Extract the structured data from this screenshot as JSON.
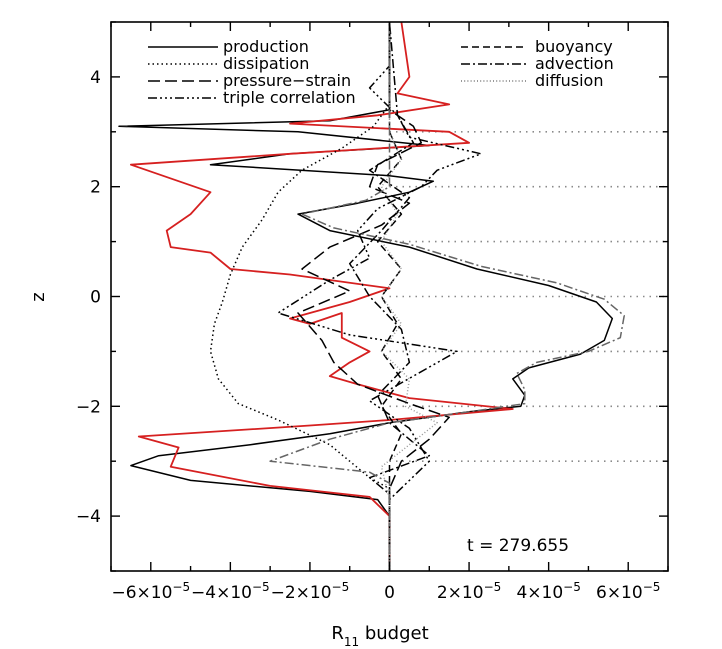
{
  "chart_data": {
    "type": "line",
    "xlabel": "R",
    "xlabel_sub": "11",
    "xlabel_suffix": " budget",
    "ylabel": "z",
    "xlim": [
      -7e-05,
      7e-05
    ],
    "ylim": [
      -5,
      5
    ],
    "annotation": "t = 279.655",
    "x_tick_labels": [
      {
        "value": -6e-05,
        "mant": "−6×10",
        "exp": "−5"
      },
      {
        "value": -4e-05,
        "mant": "−4×10",
        "exp": "−5"
      },
      {
        "value": -2e-05,
        "mant": "−2×10",
        "exp": "−5"
      },
      {
        "value": 0,
        "mant": "0",
        "exp": ""
      },
      {
        "value": 2e-05,
        "mant": "2×10",
        "exp": "−5"
      },
      {
        "value": 4e-05,
        "mant": "4×10",
        "exp": "−5"
      },
      {
        "value": 6e-05,
        "mant": "6×10",
        "exp": "−5"
      }
    ],
    "y_ticks": [
      -4,
      -2,
      0,
      2,
      4
    ],
    "y_tick_labels": [
      "−4",
      "−2",
      "0",
      "2",
      "4"
    ],
    "reference_lines_z": [
      -3,
      -2,
      -1,
      0,
      1,
      2,
      3
    ],
    "legend": {
      "left": [
        {
          "label": "production",
          "dash": "solid"
        },
        {
          "label": "dissipation",
          "dash": "dotted"
        },
        {
          "label": "pressure−strain",
          "dash": "longdash"
        },
        {
          "label": "triple correlation",
          "dash": "dashdotdotdot"
        }
      ],
      "right": [
        {
          "label": "buoyancy",
          "dash": "dashed"
        },
        {
          "label": "advection",
          "dash": "dashdot"
        },
        {
          "label": "diffusion",
          "dash": "finedot"
        }
      ]
    },
    "series": [
      {
        "name": "production",
        "color": "#000000",
        "dash": "solid",
        "points": [
          [
            0,
            -5
          ],
          [
            0,
            -4
          ],
          [
            -3e-06,
            -3.7
          ],
          [
            -2e-05,
            -3.55
          ],
          [
            -5e-05,
            -3.35
          ],
          [
            -6.5e-05,
            -3.08
          ],
          [
            -5.8e-05,
            -2.9
          ],
          [
            -3.5e-05,
            -2.7
          ],
          [
            -1.5e-05,
            -2.5
          ],
          [
            0,
            -2.3
          ],
          [
            2e-05,
            -2.1
          ],
          [
            3.3e-05,
            -2.0
          ],
          [
            3.4e-05,
            -1.8
          ],
          [
            3.1e-05,
            -1.5
          ],
          [
            3.5e-05,
            -1.3
          ],
          [
            4.8e-05,
            -1.05
          ],
          [
            5.4e-05,
            -0.8
          ],
          [
            5.6e-05,
            -0.4
          ],
          [
            5.2e-05,
            -0.1
          ],
          [
            4e-05,
            0.2
          ],
          [
            2.2e-05,
            0.5
          ],
          [
            5e-06,
            0.9
          ],
          [
            -1.5e-05,
            1.2
          ],
          [
            -2.3e-05,
            1.5
          ],
          [
            -8e-06,
            1.7
          ],
          [
            5e-06,
            1.9
          ],
          [
            1.1e-05,
            2.1
          ],
          [
            0,
            2.2
          ],
          [
            -4.5e-05,
            2.4
          ],
          [
            -2.5e-05,
            2.6
          ],
          [
            1e-05,
            2.75
          ],
          [
            -2.3e-05,
            3.0
          ],
          [
            -6.8e-05,
            3.1
          ],
          [
            -1.5e-05,
            3.2
          ],
          [
            0,
            3.4
          ],
          [
            0,
            5
          ]
        ]
      },
      {
        "name": "",
        "color": "#d62020",
        "dash": "solid",
        "points": [
          [
            0,
            -5
          ],
          [
            0,
            -4
          ],
          [
            -5e-06,
            -3.65
          ],
          [
            -3e-05,
            -3.45
          ],
          [
            -5.5e-05,
            -3.1
          ],
          [
            -5.3e-05,
            -2.75
          ],
          [
            -6.3e-05,
            -2.55
          ],
          [
            -2e-05,
            -2.35
          ],
          [
            0,
            -2.25
          ],
          [
            3.1e-05,
            -2.05
          ],
          [
            5e-06,
            -1.85
          ],
          [
            -8e-06,
            -1.6
          ],
          [
            -1.5e-05,
            -1.45
          ],
          [
            -1e-05,
            -1.2
          ],
          [
            -5e-06,
            -1.0
          ],
          [
            -1.2e-05,
            -0.75
          ],
          [
            -1.2e-05,
            -0.3
          ],
          [
            -2e-05,
            -0.5
          ],
          [
            -2.5e-05,
            -0.4
          ],
          [
            -1e-05,
            -0.1
          ],
          [
            0,
            0.15
          ],
          [
            -2.5e-05,
            0.4
          ],
          [
            -4e-05,
            0.5
          ],
          [
            -4.5e-05,
            0.8
          ],
          [
            -5.5e-05,
            0.9
          ],
          [
            -5.6e-05,
            1.2
          ],
          [
            -5e-05,
            1.5
          ],
          [
            -4.5e-05,
            1.9
          ],
          [
            -6.5e-05,
            2.4
          ],
          [
            -2.5e-05,
            2.6
          ],
          [
            2e-05,
            2.8
          ],
          [
            1.5e-05,
            3.0
          ],
          [
            -2.5e-05,
            3.15
          ],
          [
            -3e-06,
            3.3
          ],
          [
            1.5e-05,
            3.5
          ],
          [
            2e-06,
            3.7
          ],
          [
            5e-06,
            4.0
          ],
          [
            3e-06,
            5
          ]
        ]
      },
      {
        "name": "dissipation",
        "color": "#000000",
        "dash": "dotted",
        "points": [
          [
            0,
            -5
          ],
          [
            0,
            -4.0
          ],
          [
            0,
            -3.5
          ],
          [
            -5e-06,
            -3.3
          ],
          [
            -1.5e-05,
            -2.7
          ],
          [
            -2.8e-05,
            -2.25
          ],
          [
            -3.8e-05,
            -1.95
          ],
          [
            -4.3e-05,
            -1.5
          ],
          [
            -4.5e-05,
            -1.0
          ],
          [
            -4.4e-05,
            -0.5
          ],
          [
            -4.2e-05,
            -0.1
          ],
          [
            -4e-05,
            0.4
          ],
          [
            -3.7e-05,
            0.9
          ],
          [
            -3.2e-05,
            1.4
          ],
          [
            -2.8e-05,
            1.9
          ],
          [
            -2.2e-05,
            2.3
          ],
          [
            -1.2e-05,
            2.7
          ],
          [
            -4e-06,
            3.1
          ],
          [
            0,
            3.5
          ],
          [
            0,
            5
          ]
        ]
      },
      {
        "name": "pressure−strain",
        "color": "#000000",
        "dash": "longdash",
        "points": [
          [
            0,
            -5
          ],
          [
            0,
            -3.5
          ],
          [
            3e-06,
            -3.0
          ],
          [
            1e-05,
            -2.6
          ],
          [
            1.5e-05,
            -2.2
          ],
          [
            5e-06,
            -1.95
          ],
          [
            -8e-06,
            -1.6
          ],
          [
            -1.4e-05,
            -1.2
          ],
          [
            -1.7e-05,
            -0.8
          ],
          [
            -2.3e-05,
            -0.3
          ],
          [
            -1e-05,
            0.1
          ],
          [
            -2.2e-05,
            0.5
          ],
          [
            -1.5e-05,
            0.9
          ],
          [
            -2e-06,
            1.3
          ],
          [
            5e-06,
            1.7
          ],
          [
            -5e-06,
            2.0
          ],
          [
            -3e-06,
            2.4
          ],
          [
            8e-06,
            2.8
          ],
          [
            6e-06,
            3.1
          ],
          [
            0,
            3.4
          ],
          [
            0,
            5
          ]
        ]
      },
      {
        "name": "triple correlation",
        "color": "#000000",
        "dash": "dashdotdotdot",
        "points": [
          [
            0,
            -5
          ],
          [
            0,
            -3.7
          ],
          [
            1e-05,
            -3.0
          ],
          [
            5e-06,
            -2.4
          ],
          [
            -5e-06,
            -1.9
          ],
          [
            1.7e-05,
            -1.0
          ],
          [
            -1e-05,
            -0.7
          ],
          [
            -2.8e-05,
            -0.3
          ],
          [
            -1.5e-05,
            0.3
          ],
          [
            -5e-06,
            0.7
          ],
          [
            -8e-06,
            1.2
          ],
          [
            -3e-06,
            1.6
          ],
          [
            8e-06,
            2.0
          ],
          [
            1.2e-05,
            2.3
          ],
          [
            2.3e-05,
            2.6
          ],
          [
            5e-06,
            2.9
          ],
          [
            2e-06,
            3.3
          ],
          [
            -5e-06,
            3.8
          ],
          [
            0,
            4.2
          ],
          [
            0,
            5
          ]
        ]
      },
      {
        "name": "buoyancy",
        "color": "#000000",
        "dash": "dashed",
        "points": [
          [
            0,
            -5
          ],
          [
            0,
            -3.0
          ],
          [
            3e-06,
            -2.5
          ],
          [
            -2e-06,
            -2.0
          ],
          [
            3e-06,
            -1.5
          ],
          [
            -2e-06,
            -1.0
          ],
          [
            2e-06,
            -0.5
          ],
          [
            -2e-06,
            0
          ],
          [
            3e-06,
            0.5
          ],
          [
            -3e-06,
            1.0
          ],
          [
            3e-06,
            1.5
          ],
          [
            -3e-06,
            2.0
          ],
          [
            3e-06,
            2.5
          ],
          [
            0,
            3.0
          ],
          [
            0,
            5
          ]
        ]
      },
      {
        "name": "advection",
        "color": "#000000",
        "dash": "dashdot",
        "points": [
          [
            0,
            -5
          ],
          [
            0,
            -3.6
          ],
          [
            -5e-06,
            -3.3
          ],
          [
            1e-05,
            -2.9
          ],
          [
            0,
            -2.3
          ],
          [
            -3e-06,
            -1.8
          ],
          [
            5e-06,
            -1.2
          ],
          [
            3e-06,
            -0.6
          ],
          [
            -5e-06,
            0
          ],
          [
            -1e-05,
            0.6
          ],
          [
            -2e-06,
            1.2
          ],
          [
            5e-06,
            1.8
          ],
          [
            -5e-06,
            2.3
          ],
          [
            6e-06,
            2.8
          ],
          [
            2e-06,
            3.3
          ],
          [
            0,
            5
          ]
        ]
      },
      {
        "name": "diffusion",
        "color": "#999999",
        "dash": "finedot",
        "points": [
          [
            0,
            -5
          ],
          [
            0,
            -3.7
          ],
          [
            -2e-06,
            -3.1
          ],
          [
            5e-06,
            -2.7
          ],
          [
            1.2e-05,
            -2.3
          ],
          [
            4e-06,
            -2.0
          ],
          [
            5e-06,
            -1.5
          ],
          [
            -2e-06,
            -1.0
          ],
          [
            3e-06,
            -0.5
          ],
          [
            -2e-06,
            0
          ],
          [
            3e-06,
            0.5
          ],
          [
            -2e-06,
            1.0
          ],
          [
            2e-06,
            1.5
          ],
          [
            -2e-06,
            2.0
          ],
          [
            3e-06,
            2.5
          ],
          [
            0,
            3.0
          ],
          [
            0,
            5
          ]
        ]
      },
      {
        "name": "",
        "color": "#666666",
        "dash": "dashdot",
        "points": [
          [
            0,
            -5
          ],
          [
            0,
            -3.4
          ],
          [
            -5e-06,
            -3.2
          ],
          [
            -3e-05,
            -3.0
          ],
          [
            -1.5e-05,
            -2.6
          ],
          [
            0,
            -2.3
          ],
          [
            2e-05,
            -2.1
          ],
          [
            3.4e-05,
            -1.95
          ],
          [
            3.4e-05,
            -1.7
          ],
          [
            3.2e-05,
            -1.4
          ],
          [
            3.7e-05,
            -1.2
          ],
          [
            5e-05,
            -1.0
          ],
          [
            5.8e-05,
            -0.75
          ],
          [
            5.9e-05,
            -0.35
          ],
          [
            5.4e-05,
            -0.05
          ],
          [
            4.2e-05,
            0.25
          ],
          [
            2.3e-05,
            0.55
          ],
          [
            5e-06,
            0.95
          ],
          [
            -1.4e-05,
            1.25
          ],
          [
            -2.2e-05,
            1.5
          ],
          [
            -6e-06,
            1.75
          ],
          [
            0,
            2.0
          ],
          [
            0,
            5
          ]
        ]
      }
    ]
  }
}
